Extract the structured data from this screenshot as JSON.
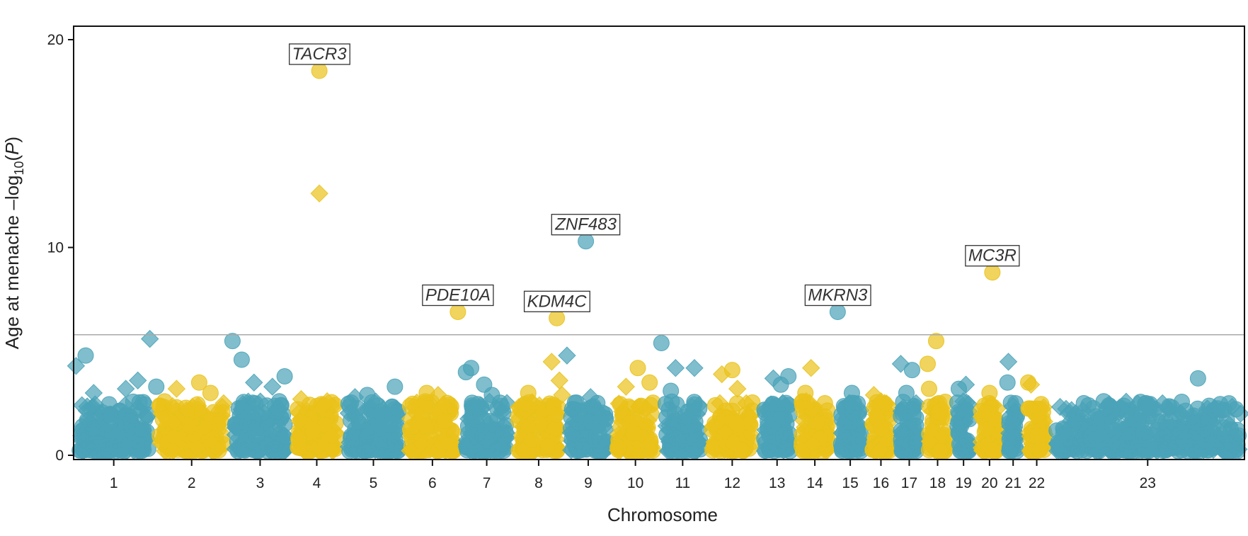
{
  "chart_data": {
    "type": "scatter",
    "subtype": "manhattan",
    "title": "",
    "xlabel": "Chromosome",
    "ylabel_prefix": "Age at menache –log",
    "ylabel_sub": "10",
    "ylabel_suffix_open": "(",
    "ylabel_var": "P",
    "ylabel_suffix_close": ")",
    "ylim": [
      0,
      20.8
    ],
    "yticks": [
      0,
      10,
      20
    ],
    "significance_threshold": 5.8,
    "colors": {
      "odd": "#4aa3b8",
      "even": "#e9c21a",
      "threshold": "#a8a8a8",
      "label_border": "#333333"
    },
    "chromosomes": [
      "1",
      "2",
      "3",
      "4",
      "5",
      "6",
      "7",
      "8",
      "9",
      "10",
      "11",
      "12",
      "13",
      "14",
      "15",
      "16",
      "17",
      "18",
      "19",
      "20",
      "21",
      "22",
      "23"
    ],
    "chromosome_span": [
      0,
      248
    ],
    "chromosome_starts": [
      0,
      17,
      33,
      46,
      57,
      70,
      82,
      93,
      104,
      114,
      124,
      134,
      145,
      153,
      161,
      168,
      174,
      180,
      186,
      191,
      197,
      201,
      207,
      248
    ],
    "peaks": [
      {
        "chr": "1",
        "pos": 0.03,
        "p": 4.3,
        "shape": "diamond"
      },
      {
        "chr": "1",
        "pos": 0.15,
        "p": 4.8,
        "shape": "circle"
      },
      {
        "chr": "1",
        "pos": 0.25,
        "p": 3.0,
        "shape": "diamond"
      },
      {
        "chr": "1",
        "pos": 0.65,
        "p": 3.2,
        "shape": "diamond"
      },
      {
        "chr": "1",
        "pos": 0.8,
        "p": 3.6,
        "shape": "diamond"
      },
      {
        "chr": "1",
        "pos": 0.95,
        "p": 5.6,
        "shape": "diamond"
      },
      {
        "chr": "1",
        "pos": 1.03,
        "p": 3.3,
        "shape": "circle"
      },
      {
        "chr": "2",
        "pos": 0.3,
        "p": 3.2,
        "shape": "diamond"
      },
      {
        "chr": "2",
        "pos": 0.6,
        "p": 3.5,
        "shape": "circle"
      },
      {
        "chr": "2",
        "pos": 0.75,
        "p": 3.0,
        "shape": "circle"
      },
      {
        "chr": "3",
        "pos": 0.05,
        "p": 5.5,
        "shape": "circle"
      },
      {
        "chr": "3",
        "pos": 0.2,
        "p": 4.6,
        "shape": "circle"
      },
      {
        "chr": "3",
        "pos": 0.4,
        "p": 3.5,
        "shape": "diamond"
      },
      {
        "chr": "3",
        "pos": 0.7,
        "p": 3.3,
        "shape": "diamond"
      },
      {
        "chr": "3",
        "pos": 0.9,
        "p": 3.8,
        "shape": "circle"
      },
      {
        "chr": "4",
        "pos": 0.55,
        "p": 18.5,
        "shape": "circle",
        "label": "TACR3"
      },
      {
        "chr": "4",
        "pos": 0.55,
        "p": 12.6,
        "shape": "diamond"
      },
      {
        "chr": "4",
        "pos": 0.2,
        "p": 2.7,
        "shape": "diamond"
      },
      {
        "chr": "4",
        "pos": 0.7,
        "p": 2.6,
        "shape": "diamond"
      },
      {
        "chr": "5",
        "pos": 0.2,
        "p": 2.8,
        "shape": "diamond"
      },
      {
        "chr": "5",
        "pos": 0.4,
        "p": 2.9,
        "shape": "circle"
      },
      {
        "chr": "5",
        "pos": 0.85,
        "p": 3.3,
        "shape": "circle"
      },
      {
        "chr": "6",
        "pos": 0.4,
        "p": 3.0,
        "shape": "circle"
      },
      {
        "chr": "6",
        "pos": 0.6,
        "p": 2.9,
        "shape": "diamond"
      },
      {
        "chr": "6",
        "pos": 0.95,
        "p": 6.9,
        "shape": "circle",
        "label": "PDE10A"
      },
      {
        "chr": "7",
        "pos": 0.1,
        "p": 4.0,
        "shape": "circle"
      },
      {
        "chr": "7",
        "pos": 0.2,
        "p": 4.2,
        "shape": "circle"
      },
      {
        "chr": "7",
        "pos": 0.45,
        "p": 3.4,
        "shape": "circle"
      },
      {
        "chr": "7",
        "pos": 0.6,
        "p": 2.9,
        "shape": "circle"
      },
      {
        "chr": "8",
        "pos": 0.3,
        "p": 3.0,
        "shape": "circle"
      },
      {
        "chr": "8",
        "pos": 0.75,
        "p": 4.5,
        "shape": "diamond"
      },
      {
        "chr": "8",
        "pos": 0.85,
        "p": 6.6,
        "shape": "circle",
        "label": "KDM4C"
      },
      {
        "chr": "8",
        "pos": 0.9,
        "p": 3.6,
        "shape": "diamond"
      },
      {
        "chr": "8",
        "pos": 0.95,
        "p": 2.9,
        "shape": "diamond"
      },
      {
        "chr": "9",
        "pos": 0.05,
        "p": 4.8,
        "shape": "diamond"
      },
      {
        "chr": "9",
        "pos": 0.45,
        "p": 10.3,
        "shape": "circle",
        "label": "ZNF483"
      },
      {
        "chr": "9",
        "pos": 0.55,
        "p": 2.8,
        "shape": "diamond"
      },
      {
        "chr": "10",
        "pos": 0.3,
        "p": 3.3,
        "shape": "diamond"
      },
      {
        "chr": "10",
        "pos": 0.55,
        "p": 4.2,
        "shape": "circle"
      },
      {
        "chr": "10",
        "pos": 0.8,
        "p": 3.5,
        "shape": "circle"
      },
      {
        "chr": "11",
        "pos": 0.05,
        "p": 5.4,
        "shape": "circle"
      },
      {
        "chr": "11",
        "pos": 0.35,
        "p": 4.2,
        "shape": "diamond"
      },
      {
        "chr": "11",
        "pos": 0.25,
        "p": 3.1,
        "shape": "circle"
      },
      {
        "chr": "11",
        "pos": 0.75,
        "p": 4.2,
        "shape": "diamond"
      },
      {
        "chr": "12",
        "pos": 0.3,
        "p": 3.9,
        "shape": "diamond"
      },
      {
        "chr": "12",
        "pos": 0.5,
        "p": 4.1,
        "shape": "circle"
      },
      {
        "chr": "12",
        "pos": 0.6,
        "p": 3.2,
        "shape": "diamond"
      },
      {
        "chr": "13",
        "pos": 0.4,
        "p": 3.7,
        "shape": "diamond"
      },
      {
        "chr": "13",
        "pos": 0.6,
        "p": 3.4,
        "shape": "circle"
      },
      {
        "chr": "13",
        "pos": 0.8,
        "p": 3.8,
        "shape": "circle"
      },
      {
        "chr": "14",
        "pos": 0.25,
        "p": 3.0,
        "shape": "circle"
      },
      {
        "chr": "14",
        "pos": 0.4,
        "p": 4.2,
        "shape": "diamond"
      },
      {
        "chr": "15",
        "pos": 0.12,
        "p": 6.9,
        "shape": "circle",
        "label": "MKRN3"
      },
      {
        "chr": "15",
        "pos": 0.55,
        "p": 3.0,
        "shape": "circle"
      },
      {
        "chr": "16",
        "pos": 0.25,
        "p": 2.9,
        "shape": "diamond"
      },
      {
        "chr": "16",
        "pos": 0.5,
        "p": 2.6,
        "shape": "diamond"
      },
      {
        "chr": "17",
        "pos": 0.2,
        "p": 4.4,
        "shape": "diamond"
      },
      {
        "chr": "17",
        "pos": 0.6,
        "p": 4.1,
        "shape": "circle"
      },
      {
        "chr": "17",
        "pos": 0.4,
        "p": 3.0,
        "shape": "circle"
      },
      {
        "chr": "18",
        "pos": 0.15,
        "p": 4.4,
        "shape": "circle"
      },
      {
        "chr": "18",
        "pos": 0.45,
        "p": 5.5,
        "shape": "circle"
      },
      {
        "chr": "18",
        "pos": 0.2,
        "p": 3.2,
        "shape": "circle"
      },
      {
        "chr": "19",
        "pos": 0.3,
        "p": 3.2,
        "shape": "circle"
      },
      {
        "chr": "19",
        "pos": 0.6,
        "p": 3.4,
        "shape": "diamond"
      },
      {
        "chr": "20",
        "pos": 0.6,
        "p": 8.8,
        "shape": "circle",
        "label": "MC3R"
      },
      {
        "chr": "20",
        "pos": 0.5,
        "p": 3.0,
        "shape": "circle"
      },
      {
        "chr": "21",
        "pos": 0.25,
        "p": 4.5,
        "shape": "diamond"
      },
      {
        "chr": "21",
        "pos": 0.2,
        "p": 3.5,
        "shape": "circle"
      },
      {
        "chr": "22",
        "pos": 0.3,
        "p": 3.4,
        "shape": "diamond"
      },
      {
        "chr": "22",
        "pos": 0.2,
        "p": 3.5,
        "shape": "circle"
      },
      {
        "chr": "23",
        "pos": 0.3,
        "p": 2.4,
        "shape": "circle"
      },
      {
        "chr": "23",
        "pos": 0.76,
        "p": 3.7,
        "shape": "circle"
      },
      {
        "chr": "23",
        "pos": 0.92,
        "p": 2.5,
        "shape": "circle"
      },
      {
        "chr": "23",
        "pos": 0.98,
        "p": 2.0,
        "shape": "diamond"
      }
    ]
  }
}
